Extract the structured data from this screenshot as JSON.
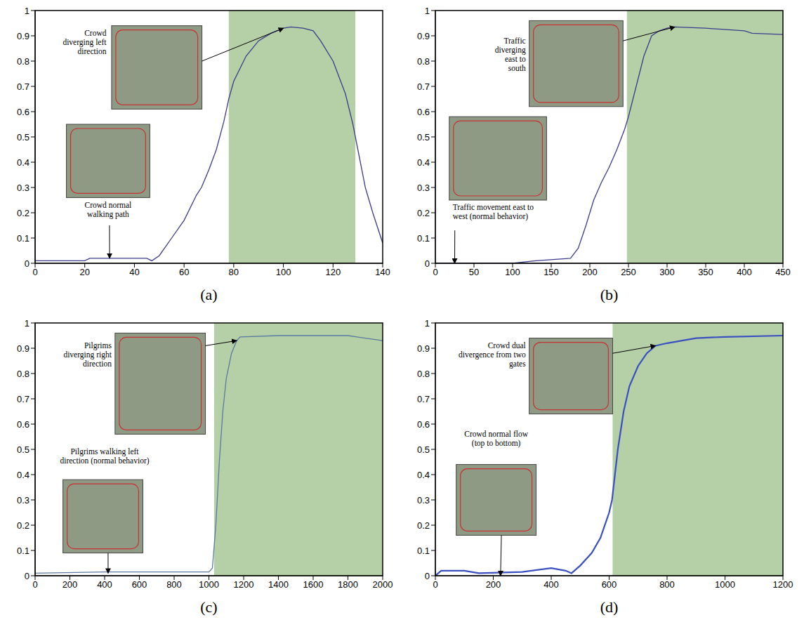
{
  "chart_data": [
    {
      "type": "line",
      "title": "(a)",
      "color": "#3c3c8c",
      "x": [
        0,
        10,
        20,
        22,
        30,
        40,
        45,
        47,
        50,
        55,
        60,
        65,
        67,
        70,
        73,
        76,
        78,
        80,
        85,
        90,
        95,
        100,
        103,
        108,
        112,
        115,
        120,
        125,
        128,
        130,
        133,
        136,
        140
      ],
      "values": [
        0.01,
        0.01,
        0.01,
        0.02,
        0.02,
        0.02,
        0.02,
        0.01,
        0.03,
        0.1,
        0.17,
        0.27,
        0.3,
        0.37,
        0.45,
        0.56,
        0.65,
        0.72,
        0.82,
        0.88,
        0.91,
        0.93,
        0.935,
        0.93,
        0.92,
        0.88,
        0.8,
        0.67,
        0.55,
        0.45,
        0.3,
        0.2,
        0.08
      ],
      "xlim": [
        0,
        140
      ],
      "ylim": [
        0,
        1
      ],
      "xticks": [
        0,
        20,
        40,
        60,
        80,
        100,
        120,
        140
      ],
      "yticks": [
        0,
        0.1,
        0.2,
        0.3,
        0.4,
        0.5,
        0.6,
        0.7,
        0.8,
        0.9,
        1
      ],
      "shaded_range": [
        78,
        129
      ],
      "annotations": [
        {
          "text": "Crowd normal walking path",
          "x": 30,
          "y": 0.02
        },
        {
          "text": "Crowd diverging left direction",
          "x": 100,
          "y": 0.93
        }
      ]
    },
    {
      "type": "line",
      "title": "(b)",
      "color": "#3c3c8c",
      "x": [
        0,
        50,
        100,
        130,
        175,
        185,
        195,
        205,
        215,
        225,
        235,
        245,
        250,
        260,
        270,
        280,
        290,
        300,
        310,
        350,
        400,
        410,
        450
      ],
      "values": [
        0,
        0,
        0,
        0.01,
        0.02,
        0.06,
        0.15,
        0.25,
        0.32,
        0.38,
        0.45,
        0.53,
        0.58,
        0.7,
        0.82,
        0.9,
        0.92,
        0.93,
        0.935,
        0.93,
        0.92,
        0.91,
        0.905
      ],
      "xlim": [
        0,
        450
      ],
      "ylim": [
        0,
        1
      ],
      "xticks": [
        0,
        50,
        100,
        150,
        200,
        250,
        300,
        350,
        400,
        450
      ],
      "yticks": [
        0,
        0.1,
        0.2,
        0.3,
        0.4,
        0.5,
        0.6,
        0.7,
        0.8,
        0.9,
        1
      ],
      "shaded_range": [
        248,
        450
      ],
      "annotations": [
        {
          "text": "Traffic movement east to west (normal behavior)",
          "x": 25,
          "y": 0
        },
        {
          "text": "Traffic diverging east to south",
          "x": 310,
          "y": 0.935
        }
      ]
    },
    {
      "type": "line",
      "title": "(c)",
      "color": "#5a7aa0",
      "x": [
        0,
        400,
        1000,
        1020,
        1040,
        1060,
        1080,
        1100,
        1130,
        1160,
        1180,
        1400,
        1800,
        1900,
        2000
      ],
      "values": [
        0.01,
        0.015,
        0.015,
        0.03,
        0.2,
        0.45,
        0.65,
        0.78,
        0.88,
        0.93,
        0.945,
        0.95,
        0.95,
        0.94,
        0.93
      ],
      "xlim": [
        0,
        2000
      ],
      "ylim": [
        0,
        1
      ],
      "xticks": [
        0,
        200,
        400,
        600,
        800,
        1000,
        1200,
        1400,
        1600,
        1800,
        2000
      ],
      "yticks": [
        0,
        0.1,
        0.2,
        0.3,
        0.4,
        0.5,
        0.6,
        0.7,
        0.8,
        0.9,
        1
      ],
      "shaded_range": [
        1030,
        2000
      ],
      "annotations": [
        {
          "text": "Pilgrims walking left direction (normal behavior)",
          "x": 420,
          "y": 0.01
        },
        {
          "text": "Pilgrims diverging right direction",
          "x": 1160,
          "y": 0.93
        }
      ]
    },
    {
      "type": "line",
      "title": "(d)",
      "color": "#3a4fc0",
      "x": [
        0,
        20,
        100,
        150,
        300,
        400,
        450,
        470,
        500,
        540,
        570,
        600,
        610,
        630,
        650,
        670,
        700,
        730,
        760,
        800,
        900,
        1000,
        1200
      ],
      "values": [
        0,
        0.02,
        0.02,
        0.01,
        0.015,
        0.03,
        0.02,
        0.01,
        0.04,
        0.09,
        0.15,
        0.25,
        0.3,
        0.5,
        0.65,
        0.75,
        0.83,
        0.88,
        0.91,
        0.92,
        0.94,
        0.945,
        0.95
      ],
      "xlim": [
        0,
        1200
      ],
      "ylim": [
        0,
        1
      ],
      "xticks": [
        0,
        200,
        400,
        600,
        800,
        1000,
        1200
      ],
      "yticks": [
        0,
        0.1,
        0.2,
        0.3,
        0.4,
        0.5,
        0.6,
        0.7,
        0.8,
        0.9,
        1
      ],
      "shaded_range": [
        612,
        1200
      ],
      "annotations": [
        {
          "text": "Crowd normal flow (top to bottom)",
          "x": 225,
          "y": 0
        },
        {
          "text": "Crowd dual divergence from two gates",
          "x": 760,
          "y": 0.91
        }
      ]
    }
  ]
}
